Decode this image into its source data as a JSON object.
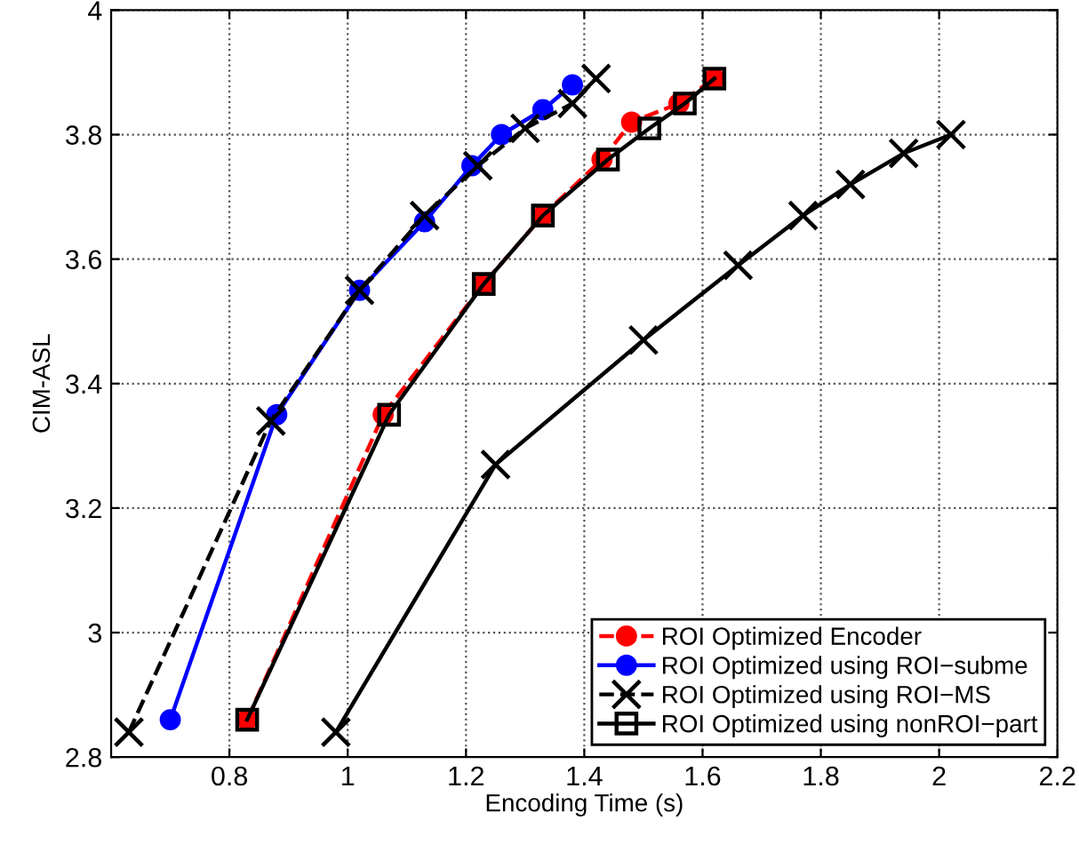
{
  "chart_data": {
    "type": "line",
    "xlabel": "Encoding Time (s)",
    "ylabel": "CIM-ASL",
    "xlim": [
      0.6,
      2.2
    ],
    "xticks": [
      0.8,
      1,
      1.2,
      1.4,
      1.6,
      1.8,
      2,
      2.2
    ],
    "ylim": [
      2.8,
      4
    ],
    "yticks": [
      2.8,
      3,
      3.2,
      3.4,
      3.6,
      3.8,
      4
    ],
    "grid": true,
    "legend": "bottom right",
    "series": [
      {
        "color": "#000000",
        "marker": "cross",
        "line_style": "solid",
        "x": [
          0.98,
          1.25,
          1.5,
          1.66,
          1.77,
          1.85,
          1.94,
          2.02
        ],
        "values": [
          2.84,
          3.27,
          3.47,
          3.59,
          3.67,
          3.72,
          3.77,
          3.8
        ]
      },
      {
        "name": "ROI Optimized Encoder",
        "color": "#ff0000",
        "marker": "circle",
        "line_style": "dashed",
        "x": [
          0.83,
          1.06,
          1.23,
          1.33,
          1.43,
          1.48,
          1.56,
          1.62
        ],
        "values": [
          2.86,
          3.35,
          3.56,
          3.67,
          3.76,
          3.82,
          3.85,
          3.89
        ]
      },
      {
        "name": "ROI Optimized using ROI−subme",
        "color": "#0000ff",
        "marker": "circle",
        "line_style": "solid",
        "x": [
          0.7,
          0.88,
          1.02,
          1.13,
          1.21,
          1.26,
          1.33,
          1.38
        ],
        "values": [
          2.86,
          3.35,
          3.55,
          3.66,
          3.75,
          3.8,
          3.84,
          3.88
        ]
      },
      {
        "name": "ROI Optimized using ROI−MS",
        "color": "#000000",
        "marker": "cross",
        "line_style": "dashed",
        "x": [
          0.63,
          0.87,
          1.02,
          1.13,
          1.22,
          1.3,
          1.38,
          1.42
        ],
        "values": [
          2.84,
          3.34,
          3.55,
          3.67,
          3.75,
          3.81,
          3.85,
          3.89
        ]
      },
      {
        "name": "ROI Optimized using nonROI−part",
        "color": "#000000",
        "marker": "square",
        "line_style": "solid",
        "x": [
          0.83,
          1.07,
          1.23,
          1.33,
          1.44,
          1.51,
          1.57,
          1.62
        ],
        "values": [
          2.86,
          3.35,
          3.56,
          3.67,
          3.76,
          3.81,
          3.85,
          3.89
        ]
      }
    ]
  }
}
